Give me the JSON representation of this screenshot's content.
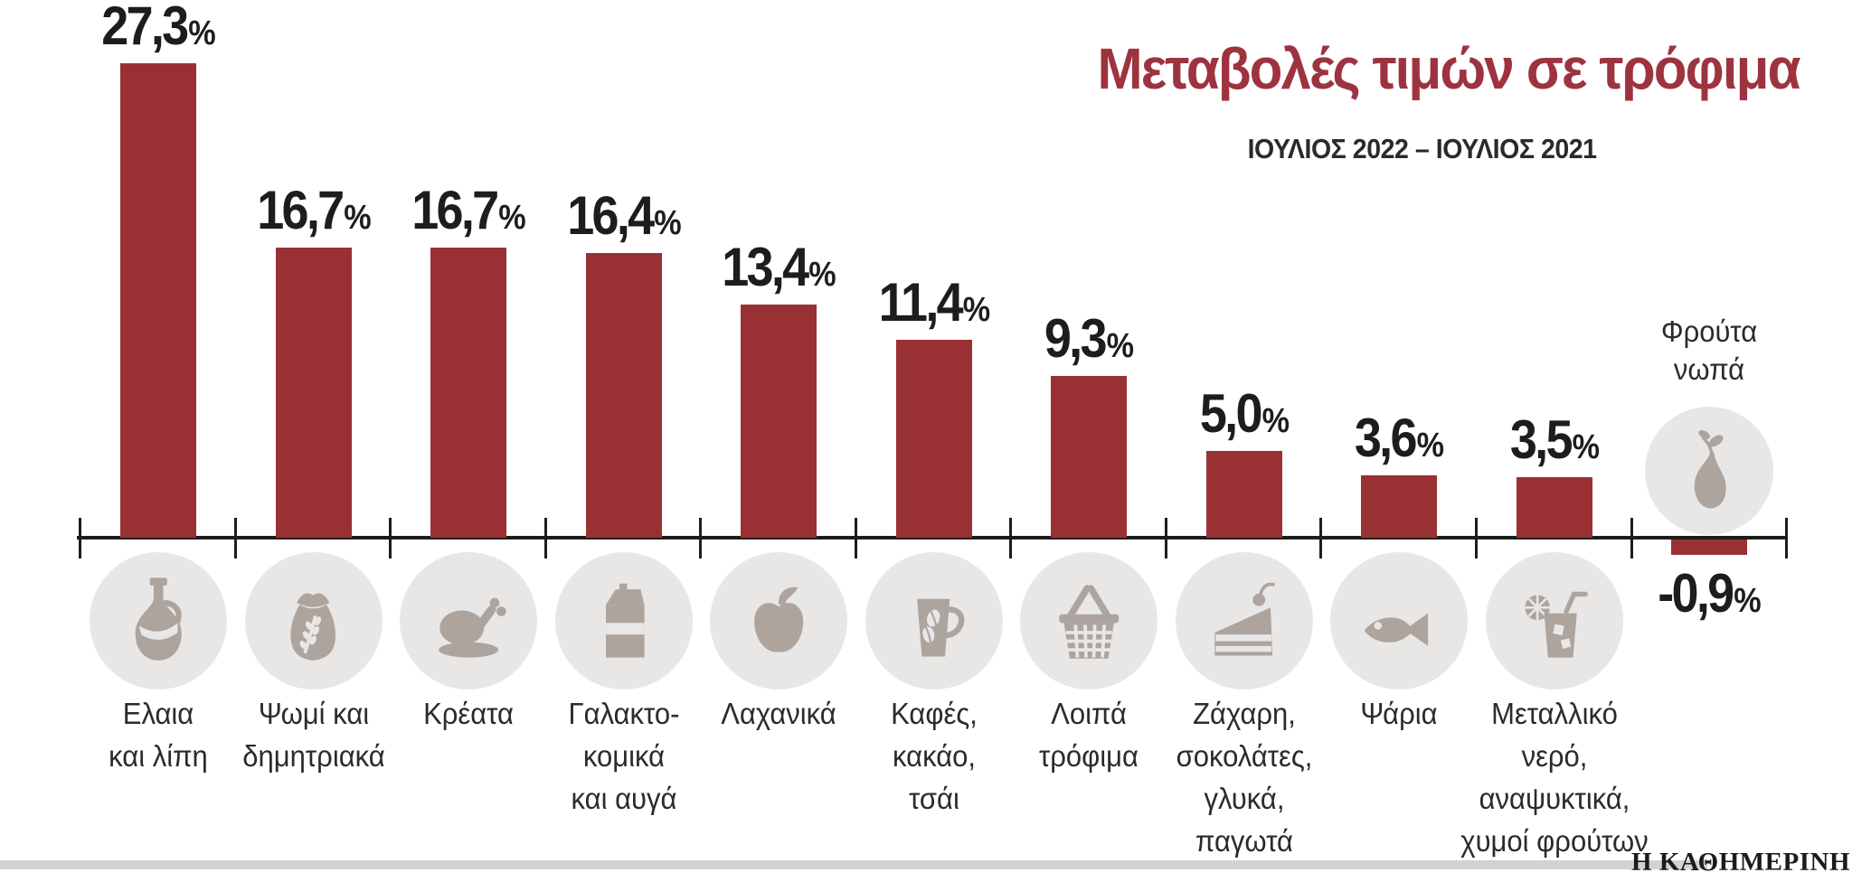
{
  "title": "Μεταβολές τιμών σε τρόφιμα",
  "subtitle": "ΙΟΥΛΙΟΣ 2022 – ΙΟΥΛΙΟΣ 2021",
  "footer_brand": "Η ΚΑΘΗΜΕΡΙΝΗ",
  "colors": {
    "bar": "#993134",
    "title": "#9e3340",
    "value_text": "#1d1d1b",
    "category_text": "#2b2b29",
    "icon_circle": "#e8e7e6",
    "icon_glyph": "#ada49e",
    "axis": "#1d1d1b",
    "footer_rule": "#d2d2d2"
  },
  "chart_data": {
    "type": "bar",
    "title": "Μεταβολές τιμών σε τρόφιμα",
    "subtitle": "ΙΟΥΛΙΟΣ 2022 – ΙΟΥΛΙΟΣ 2021",
    "unit": "%",
    "decimal_separator": ",",
    "value_axis": {
      "min": -0.9,
      "max": 27.3,
      "gridlines": false,
      "baseline": 0
    },
    "legend": "none",
    "categories": [
      "Ελαια και λίπη",
      "Ψωμί και δημητριακά",
      "Κρέατα",
      "Γαλακτοκομικά και αυγά",
      "Λαχανικά",
      "Καφές, κακάο, τσάι",
      "Λοιπά τρόφιμα",
      "Ζάχαρη, σοκολάτες, γλυκά, παγωτά",
      "Ψάρια",
      "Μεταλλικό νερό, αναψυκτικά, χυμοί φρούτων",
      "Φρούτα νωπά"
    ],
    "values": [
      27.3,
      16.7,
      16.7,
      16.4,
      13.4,
      11.4,
      9.3,
      5.0,
      3.6,
      3.5,
      -0.9
    ],
    "items": [
      {
        "label_lines": [
          "Ελαια",
          "και λίπη"
        ],
        "value": 27.3,
        "display_value": "27,3",
        "icon": "oil-bottle"
      },
      {
        "label_lines": [
          "Ψωμί και",
          "δημητριακά"
        ],
        "value": 16.7,
        "display_value": "16,7",
        "icon": "flour-sack"
      },
      {
        "label_lines": [
          "Κρέατα"
        ],
        "value": 16.7,
        "display_value": "16,7",
        "icon": "roast-chicken"
      },
      {
        "label_lines": [
          "Γαλακτο-",
          "κομικά",
          "και αυγά"
        ],
        "value": 16.4,
        "display_value": "16,4",
        "icon": "milk-carton"
      },
      {
        "label_lines": [
          "Λαχανικά"
        ],
        "value": 13.4,
        "display_value": "13,4",
        "icon": "apple"
      },
      {
        "label_lines": [
          "Καφές,",
          "κακάο,",
          "τσάι"
        ],
        "value": 11.4,
        "display_value": "11,4",
        "icon": "coffee-mug"
      },
      {
        "label_lines": [
          "Λοιπά",
          "τρόφιμα"
        ],
        "value": 9.3,
        "display_value": "9,3",
        "icon": "shopping-basket"
      },
      {
        "label_lines": [
          "Ζάχαρη,",
          "σοκολάτες,",
          "γλυκά,",
          "παγωτά"
        ],
        "value": 5.0,
        "display_value": "5,0",
        "icon": "cake-slice"
      },
      {
        "label_lines": [
          "Ψάρια"
        ],
        "value": 3.6,
        "display_value": "3,6",
        "icon": "fish"
      },
      {
        "label_lines": [
          "Μεταλλικό",
          "νερό,",
          "αναψυκτικά,",
          "χυμοί φρούτων"
        ],
        "value": 3.5,
        "display_value": "3,5",
        "icon": "drink-glass"
      },
      {
        "label_lines": [
          "Φρούτα",
          "νωπά"
        ],
        "value": -0.9,
        "display_value": "-0,9",
        "icon": "pear",
        "label_position": "top"
      }
    ]
  }
}
